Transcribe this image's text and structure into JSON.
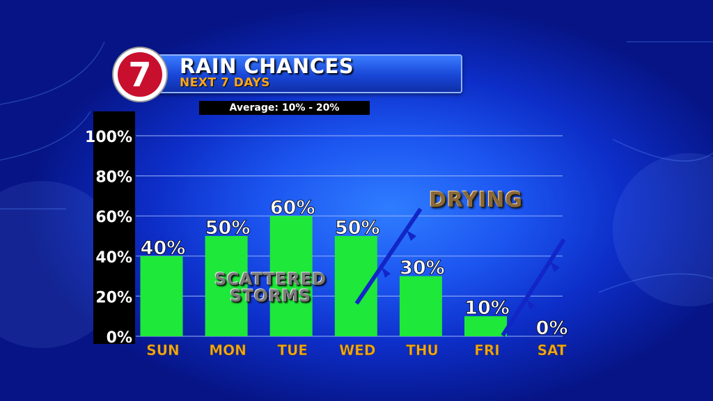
{
  "header": {
    "title": "RAIN CHANCES",
    "subtitle": "NEXT 7 DAYS",
    "logo_text": "7",
    "average_label": "Average: 10% - 20%"
  },
  "annotations": {
    "scattered_line1": "SCATTERED",
    "scattered_line2": "STORMS",
    "drying": "DRYING"
  },
  "colors": {
    "bar": "#1ee83a",
    "day_label": "#f0a81a",
    "logo_red": "#c8102e"
  },
  "chart_data": {
    "type": "bar",
    "title": "RAIN CHANCES",
    "subtitle": "NEXT 7 DAYS",
    "categories": [
      "SUN",
      "MON",
      "TUE",
      "WED",
      "THU",
      "FRI",
      "SAT"
    ],
    "values": [
      40,
      50,
      60,
      50,
      30,
      10,
      0
    ],
    "value_labels": [
      "40%",
      "50%",
      "60%",
      "50%",
      "30%",
      "10%",
      "0%"
    ],
    "yticks": [
      "0%",
      "20%",
      "40%",
      "60%",
      "80%",
      "100%"
    ],
    "ylim": [
      0,
      100
    ],
    "grid": true
  }
}
